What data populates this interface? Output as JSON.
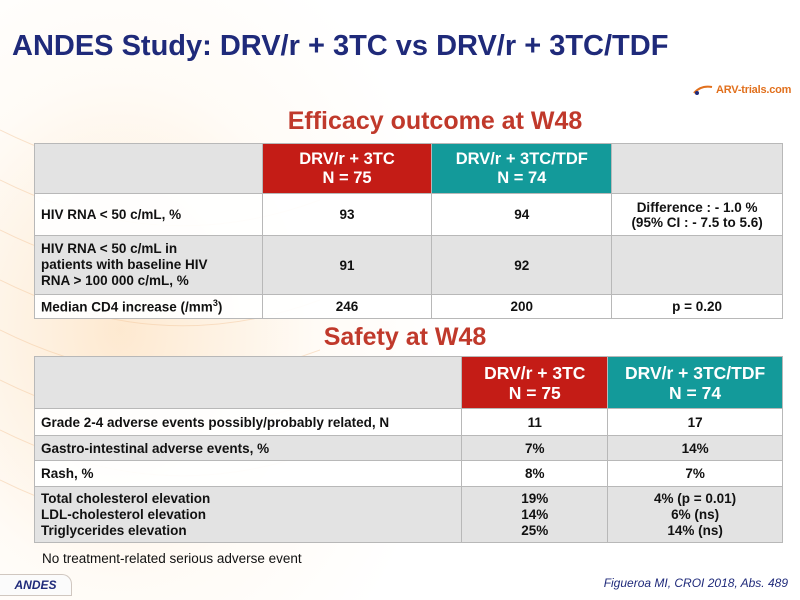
{
  "title": "ANDES Study: DRV/r + 3TC vs DRV/r + 3TC/TDF",
  "logo_text": "ARV-trials.com",
  "efficacy": {
    "heading": "Efficacy outcome at W48",
    "col1": {
      "line1": "DRV/r + 3TC",
      "line2": "N = 75"
    },
    "col2": {
      "line1": "DRV/r + 3TC/TDF",
      "line2": "N = 74"
    },
    "rows": [
      {
        "label": "HIV RNA < 50 c/mL, %",
        "a": "93",
        "b": "94",
        "c1": "Difference : - 1.0 %",
        "c2": "(95% CI : - 7.5 to 5.6)"
      },
      {
        "label1": "HIV RNA < 50 c/mL in",
        "label2": "patients with baseline HIV",
        "label3": "RNA > 100 000 c/mL, %",
        "a": "91",
        "b": "92",
        "c": ""
      },
      {
        "label": "Median CD4 increase (/mm",
        "label_sup": "3",
        "label_end": ")",
        "a": "246",
        "b": "200",
        "c": "p = 0.20"
      }
    ]
  },
  "safety": {
    "heading": "Safety at W48",
    "col1": {
      "line1": "DRV/r + 3TC",
      "line2": "N = 75"
    },
    "col2": {
      "line1": "DRV/r + 3TC/TDF",
      "line2": "N = 74"
    },
    "rows": [
      {
        "label": "Grade 2-4 adverse events possibly/probably related, N",
        "a": "11",
        "b": "17"
      },
      {
        "label": "Gastro-intestinal adverse events, %",
        "a": "7%",
        "b": "14%"
      },
      {
        "label": "Rash, %",
        "a": "8%",
        "b": "7%"
      },
      {
        "label1": "Total cholesterol elevation",
        "label2": "LDL-cholesterol elevation",
        "label3": "Triglycerides elevation",
        "a1": "19%",
        "a2": "14%",
        "a3": "25%",
        "b1": "4% (p = 0.01)",
        "b2": "6% (ns)",
        "b3": "14% (ns)"
      }
    ]
  },
  "note": "No treatment-related serious adverse event",
  "citation": "Figueroa MI, CROI 2018, Abs. 489",
  "tag": "ANDES",
  "colors": {
    "title": "#1f2a7a",
    "section_heading": "#c0392b",
    "arm1_header": "#c41c16",
    "arm2_header": "#139a9a",
    "logo": "#e1701d"
  }
}
